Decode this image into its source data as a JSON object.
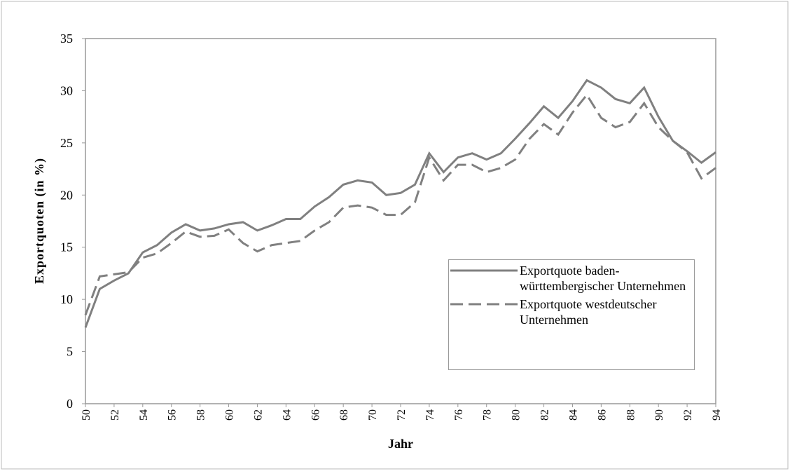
{
  "chart_data": {
    "type": "line",
    "xlabel": "Jahr",
    "ylabel": "Exportquoten (in %)",
    "x": [
      50,
      51,
      52,
      53,
      54,
      55,
      56,
      57,
      58,
      59,
      60,
      61,
      62,
      63,
      64,
      65,
      66,
      67,
      68,
      69,
      70,
      71,
      72,
      73,
      74,
      75,
      76,
      77,
      78,
      79,
      80,
      81,
      82,
      83,
      84,
      85,
      86,
      87,
      88,
      89,
      90,
      91,
      92,
      93,
      94
    ],
    "series": [
      {
        "name": "Exportquote baden-württembergischer Unternehmen",
        "color": "#808080",
        "dash": false,
        "values": [
          7.3,
          11.0,
          11.8,
          12.5,
          14.5,
          15.2,
          16.4,
          17.2,
          16.6,
          16.8,
          17.2,
          17.4,
          16.6,
          17.1,
          17.7,
          17.7,
          18.9,
          19.8,
          21.0,
          21.4,
          21.2,
          20.0,
          20.2,
          21.0,
          24.0,
          22.2,
          23.6,
          24.0,
          23.4,
          24.0,
          25.4,
          26.9,
          28.5,
          27.4,
          29.0,
          31.0,
          30.3,
          29.2,
          28.8,
          30.3,
          27.5,
          25.2,
          24.2,
          23.1,
          24.1
        ]
      },
      {
        "name": "Exportquote westdeutscher Unternehmen",
        "color": "#808080",
        "dash": true,
        "values": [
          8.5,
          12.2,
          12.4,
          12.6,
          14.0,
          14.4,
          15.4,
          16.5,
          16.0,
          16.1,
          16.7,
          15.4,
          14.6,
          15.2,
          15.4,
          15.6,
          16.6,
          17.4,
          18.8,
          19.0,
          18.8,
          18.1,
          18.1,
          19.3,
          23.6,
          21.4,
          22.9,
          22.9,
          22.2,
          22.6,
          23.4,
          25.4,
          26.8,
          25.8,
          27.9,
          29.6,
          27.4,
          26.5,
          27.0,
          28.8,
          26.5,
          25.2,
          24.1,
          21.6,
          22.6
        ]
      }
    ],
    "xlim": [
      50,
      94
    ],
    "xticks": [
      50,
      52,
      54,
      56,
      58,
      60,
      62,
      64,
      66,
      68,
      70,
      72,
      74,
      76,
      78,
      80,
      82,
      84,
      86,
      88,
      90,
      92,
      94
    ],
    "ylim": [
      0,
      35
    ],
    "yticks": [
      0,
      5,
      10,
      15,
      20,
      25,
      30,
      35
    ],
    "grid": false,
    "legend": "lower right"
  }
}
